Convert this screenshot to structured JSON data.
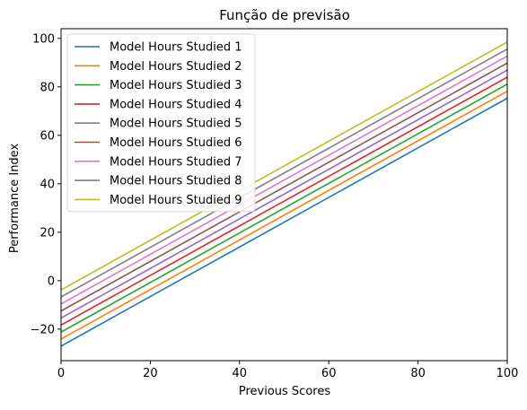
{
  "chart_data": {
    "type": "line",
    "title": "Função de previsão",
    "xlabel": "Previous Scores",
    "ylabel": "Performance Index",
    "xlim": [
      0,
      100
    ],
    "ylim": [
      -33,
      104
    ],
    "xticks": [
      0,
      20,
      40,
      60,
      80,
      100
    ],
    "yticks": [
      -20,
      0,
      20,
      40,
      60,
      80,
      100
    ],
    "grid": false,
    "legend_position": "upper-left",
    "series": [
      {
        "name": "Model Hours Studied 1",
        "color": "#1f77b4",
        "x": [
          0,
          100
        ],
        "y": [
          -27.0,
          75.3
        ]
      },
      {
        "name": "Model Hours Studied 2",
        "color": "#ff7f0e",
        "x": [
          0,
          100
        ],
        "y": [
          -24.1,
          78.2
        ]
      },
      {
        "name": "Model Hours Studied 3",
        "color": "#2ca02c",
        "x": [
          0,
          100
        ],
        "y": [
          -21.2,
          81.1
        ]
      },
      {
        "name": "Model Hours Studied 4",
        "color": "#d62728",
        "x": [
          0,
          100
        ],
        "y": [
          -18.3,
          84.0
        ]
      },
      {
        "name": "Model Hours Studied 5",
        "color": "#9467bd",
        "x": [
          0,
          100
        ],
        "y": [
          -15.4,
          86.9
        ]
      },
      {
        "name": "Model Hours Studied 6",
        "color": "#8c564b",
        "x": [
          0,
          100
        ],
        "y": [
          -12.5,
          89.8
        ]
      },
      {
        "name": "Model Hours Studied 7",
        "color": "#e377c2",
        "x": [
          0,
          100
        ],
        "y": [
          -9.6,
          92.7
        ]
      },
      {
        "name": "Model Hours Studied 8",
        "color": "#7f7f7f",
        "x": [
          0,
          100
        ],
        "y": [
          -6.7,
          95.6
        ]
      },
      {
        "name": "Model Hours Studied 9",
        "color": "#bcbd22",
        "x": [
          0,
          100
        ],
        "y": [
          -3.8,
          98.5
        ]
      }
    ]
  }
}
